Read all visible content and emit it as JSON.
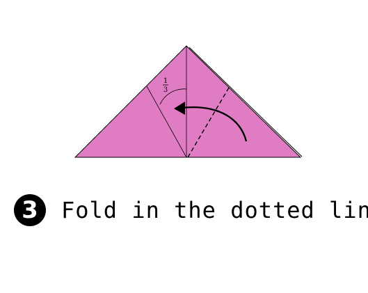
{
  "diagram": {
    "paper_color": "#e07cc4",
    "line_color": "#000000",
    "fraction": {
      "numerator": "1",
      "denominator": "3"
    }
  },
  "step": {
    "number": "3",
    "instruction": "Fold in the dotted line"
  }
}
